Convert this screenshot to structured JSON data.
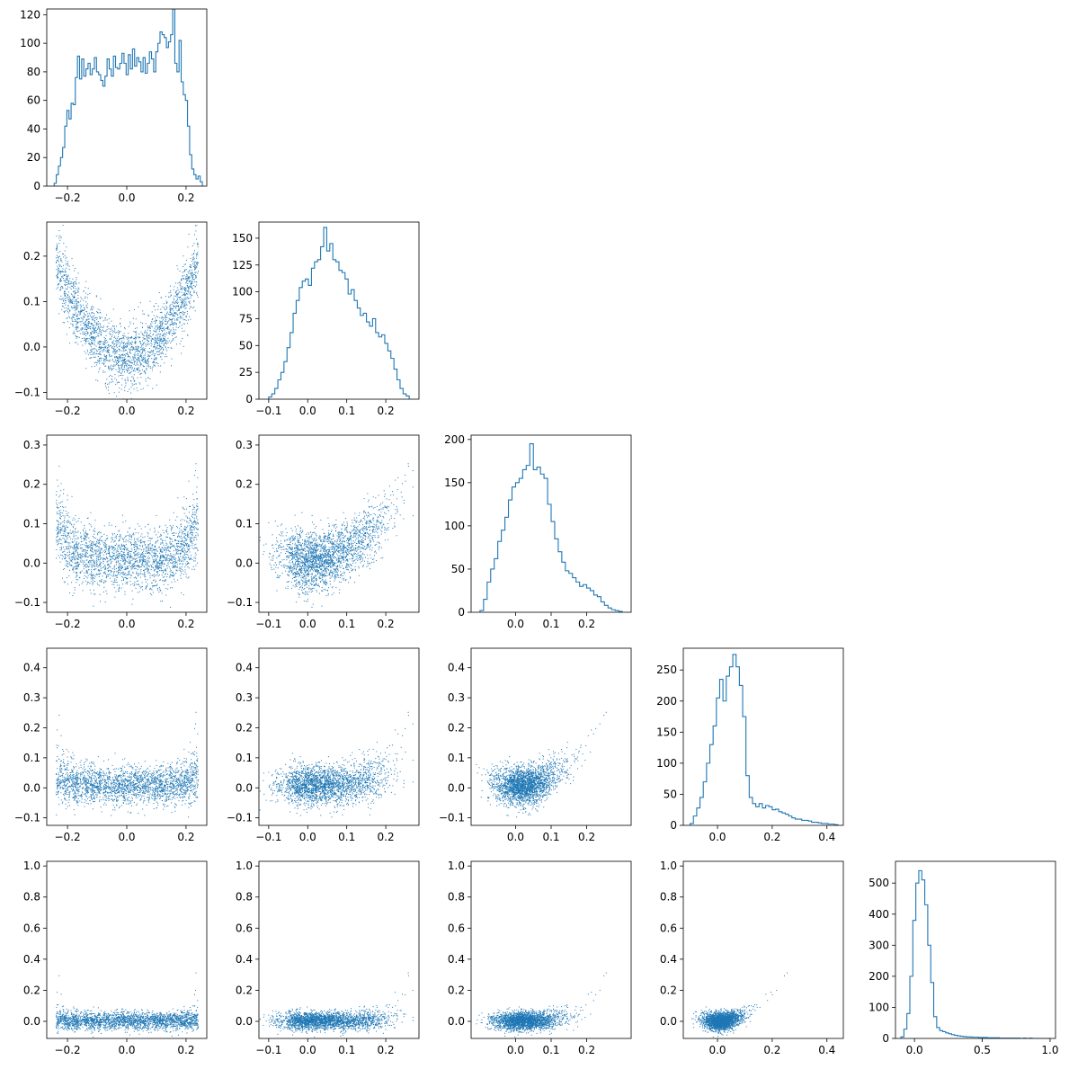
{
  "figure": {
    "type": "corner-plot",
    "colors": {
      "series": "#1f77b4",
      "axes": "#000000",
      "background": "#ffffff"
    }
  },
  "chart_data": [
    {
      "type": "histogram",
      "row": 0,
      "col": 0,
      "xlim": [
        -0.27,
        0.27
      ],
      "ylim": [
        0,
        124
      ],
      "xticks": [
        {
          "v": -0.2,
          "label": "−0.2"
        },
        {
          "v": 0.0,
          "label": "0.0"
        },
        {
          "v": 0.2,
          "label": "0.2"
        }
      ],
      "yticks": [
        {
          "v": 0,
          "label": "0"
        },
        {
          "v": 20,
          "label": "20"
        },
        {
          "v": 40,
          "label": "40"
        },
        {
          "v": 60,
          "label": "60"
        },
        {
          "v": 80,
          "label": "80"
        },
        {
          "v": 100,
          "label": "100"
        },
        {
          "v": 120,
          "label": "120"
        }
      ],
      "bin_range": [
        -0.245,
        0.255
      ],
      "values": [
        2,
        8,
        14,
        20,
        27,
        42,
        53,
        47,
        58,
        57,
        76,
        91,
        75,
        89,
        77,
        82,
        86,
        78,
        82,
        90,
        80,
        78,
        74,
        70,
        77,
        89,
        82,
        77,
        91,
        83,
        82,
        86,
        93,
        86,
        78,
        92,
        82,
        96,
        84,
        90,
        87,
        80,
        90,
        79,
        86,
        94,
        89,
        80,
        94,
        100,
        108,
        106,
        104,
        97,
        101,
        106,
        124,
        86,
        80,
        102,
        73,
        64,
        60,
        42,
        22,
        12,
        8,
        5,
        7,
        3
      ]
    },
    {
      "type": "scatter",
      "row": 1,
      "col": 0,
      "xlim": [
        -0.27,
        0.27
      ],
      "ylim": [
        -0.115,
        0.275
      ],
      "xticks": [
        {
          "v": -0.2,
          "label": "−0.2"
        },
        {
          "v": 0.0,
          "label": "0.0"
        },
        {
          "v": 0.2,
          "label": "0.2"
        }
      ],
      "yticks": [
        {
          "v": -0.1,
          "label": "−0.1"
        },
        {
          "v": 0.0,
          "label": "0.0"
        },
        {
          "v": 0.1,
          "label": "0.1"
        },
        {
          "v": 0.2,
          "label": "0.2"
        }
      ],
      "n_points": 2400,
      "trend": "y ≈ 3.6·x² + N(0, 0.04)"
    },
    {
      "type": "histogram",
      "row": 1,
      "col": 1,
      "xlim": [
        -0.125,
        0.285
      ],
      "ylim": [
        0,
        165
      ],
      "xticks": [
        {
          "v": -0.1,
          "label": "−0.1"
        },
        {
          "v": 0.0,
          "label": "0.0"
        },
        {
          "v": 0.1,
          "label": "0.1"
        },
        {
          "v": 0.2,
          "label": "0.2"
        }
      ],
      "yticks": [
        {
          "v": 0,
          "label": "0"
        },
        {
          "v": 25,
          "label": "25"
        },
        {
          "v": 50,
          "label": "50"
        },
        {
          "v": 75,
          "label": "75"
        },
        {
          "v": 100,
          "label": "100"
        },
        {
          "v": 125,
          "label": "125"
        },
        {
          "v": 150,
          "label": "150"
        }
      ],
      "bin_range": [
        -0.1,
        0.26
      ],
      "values": [
        2,
        5,
        10,
        18,
        25,
        35,
        48,
        62,
        80,
        92,
        104,
        110,
        112,
        106,
        122,
        128,
        130,
        142,
        160,
        138,
        145,
        130,
        128,
        120,
        118,
        112,
        98,
        102,
        92,
        85,
        78,
        80,
        72,
        68,
        75,
        62,
        58,
        60,
        52,
        45,
        38,
        28,
        18,
        10,
        5,
        3
      ]
    },
    {
      "type": "scatter",
      "row": 2,
      "col": 0,
      "xlim": [
        -0.27,
        0.27
      ],
      "ylim": [
        -0.125,
        0.325
      ],
      "xticks": [
        {
          "v": -0.2,
          "label": "−0.2"
        },
        {
          "v": 0.0,
          "label": "0.0"
        },
        {
          "v": 0.2,
          "label": "0.2"
        }
      ],
      "yticks": [
        {
          "v": -0.1,
          "label": "−0.1"
        },
        {
          "v": 0.0,
          "label": "0.0"
        },
        {
          "v": 0.1,
          "label": "0.1"
        },
        {
          "v": 0.2,
          "label": "0.2"
        },
        {
          "v": 0.3,
          "label": "0.3"
        }
      ],
      "n_points": 2400,
      "trend": "U-shaped, y ≈ 4·x² + N(0, 0.045)"
    },
    {
      "type": "scatter",
      "row": 2,
      "col": 1,
      "xlim": [
        -0.125,
        0.285
      ],
      "ylim": [
        -0.125,
        0.325
      ],
      "xticks": [
        {
          "v": -0.1,
          "label": "−0.1"
        },
        {
          "v": 0.0,
          "label": "0.0"
        },
        {
          "v": 0.1,
          "label": "0.1"
        },
        {
          "v": 0.2,
          "label": "0.2"
        }
      ],
      "yticks": [
        {
          "v": -0.1,
          "label": "−0.1"
        },
        {
          "v": 0.0,
          "label": "0.0"
        },
        {
          "v": 0.1,
          "label": "0.1"
        },
        {
          "v": 0.2,
          "label": "0.2"
        },
        {
          "v": 0.3,
          "label": "0.3"
        }
      ],
      "n_points": 2400,
      "trend": "increasing convex"
    },
    {
      "type": "histogram",
      "row": 2,
      "col": 2,
      "xlim": [
        -0.125,
        0.325
      ],
      "ylim": [
        0,
        205
      ],
      "xticks": [
        {
          "v": 0.0,
          "label": "0.0"
        },
        {
          "v": 0.1,
          "label": "0.1"
        },
        {
          "v": 0.2,
          "label": "0.2"
        }
      ],
      "yticks": [
        {
          "v": 0,
          "label": "0"
        },
        {
          "v": 50,
          "label": "50"
        },
        {
          "v": 100,
          "label": "100"
        },
        {
          "v": 150,
          "label": "150"
        },
        {
          "v": 200,
          "label": "200"
        }
      ],
      "bin_range": [
        -0.1,
        0.3
      ],
      "values": [
        2,
        15,
        35,
        50,
        62,
        82,
        95,
        110,
        130,
        145,
        150,
        155,
        165,
        170,
        195,
        165,
        168,
        160,
        155,
        125,
        105,
        85,
        70,
        58,
        48,
        45,
        40,
        35,
        30,
        32,
        28,
        25,
        20,
        18,
        12,
        8,
        5,
        3,
        2,
        1
      ]
    },
    {
      "type": "scatter",
      "row": 3,
      "col": 0,
      "xlim": [
        -0.27,
        0.27
      ],
      "ylim": [
        -0.125,
        0.465
      ],
      "xticks": [
        {
          "v": -0.2,
          "label": "−0.2"
        },
        {
          "v": 0.0,
          "label": "0.0"
        },
        {
          "v": 0.2,
          "label": "0.2"
        }
      ],
      "yticks": [
        {
          "v": -0.1,
          "label": "−0.1"
        },
        {
          "v": 0.0,
          "label": "0.0"
        },
        {
          "v": 0.1,
          "label": "0.1"
        },
        {
          "v": 0.2,
          "label": "0.2"
        },
        {
          "v": 0.3,
          "label": "0.3"
        },
        {
          "v": 0.4,
          "label": "0.4"
        }
      ],
      "n_points": 2400,
      "trend": "U-shaped, flat floor"
    },
    {
      "type": "scatter",
      "row": 3,
      "col": 1,
      "xlim": [
        -0.125,
        0.285
      ],
      "ylim": [
        -0.125,
        0.465
      ],
      "xticks": [
        {
          "v": -0.1,
          "label": "−0.1"
        },
        {
          "v": 0.0,
          "label": "0.0"
        },
        {
          "v": 0.1,
          "label": "0.1"
        },
        {
          "v": 0.2,
          "label": "0.2"
        }
      ],
      "yticks": [
        {
          "v": -0.1,
          "label": "−0.1"
        },
        {
          "v": 0.0,
          "label": "0.0"
        },
        {
          "v": 0.1,
          "label": "0.1"
        },
        {
          "v": 0.2,
          "label": "0.2"
        },
        {
          "v": 0.3,
          "label": "0.3"
        },
        {
          "v": 0.4,
          "label": "0.4"
        }
      ],
      "n_points": 2400,
      "trend": "flat then rising"
    },
    {
      "type": "scatter",
      "row": 3,
      "col": 2,
      "xlim": [
        -0.125,
        0.325
      ],
      "ylim": [
        -0.125,
        0.465
      ],
      "xticks": [
        {
          "v": 0.0,
          "label": "0.0"
        },
        {
          "v": 0.1,
          "label": "0.1"
        },
        {
          "v": 0.2,
          "label": "0.2"
        }
      ],
      "yticks": [
        {
          "v": -0.1,
          "label": "−0.1"
        },
        {
          "v": 0.0,
          "label": "0.0"
        },
        {
          "v": 0.1,
          "label": "0.1"
        },
        {
          "v": 0.2,
          "label": "0.2"
        },
        {
          "v": 0.3,
          "label": "0.3"
        },
        {
          "v": 0.4,
          "label": "0.4"
        }
      ],
      "n_points": 2400,
      "trend": "flat blob then rising"
    },
    {
      "type": "histogram",
      "row": 3,
      "col": 3,
      "xlim": [
        -0.125,
        0.46
      ],
      "ylim": [
        0,
        285
      ],
      "xticks": [
        {
          "v": 0.0,
          "label": "0.0"
        },
        {
          "v": 0.2,
          "label": "0.2"
        },
        {
          "v": 0.4,
          "label": "0.4"
        }
      ],
      "yticks": [
        {
          "v": 0,
          "label": "0"
        },
        {
          "v": 50,
          "label": "50"
        },
        {
          "v": 100,
          "label": "100"
        },
        {
          "v": 150,
          "label": "150"
        },
        {
          "v": 200,
          "label": "200"
        },
        {
          "v": 250,
          "label": "250"
        }
      ],
      "bin_range": [
        -0.1,
        0.44
      ],
      "values": [
        3,
        15,
        28,
        45,
        70,
        100,
        130,
        160,
        205,
        235,
        200,
        240,
        255,
        275,
        255,
        225,
        175,
        80,
        45,
        35,
        30,
        35,
        28,
        32,
        30,
        25,
        26,
        22,
        20,
        18,
        15,
        12,
        10,
        10,
        8,
        8,
        7,
        5,
        5,
        4,
        3,
        3,
        2,
        2,
        1
      ]
    },
    {
      "type": "scatter",
      "row": 4,
      "col": 0,
      "xlim": [
        -0.27,
        0.27
      ],
      "ylim": [
        -0.11,
        1.03
      ],
      "xticks": [
        {
          "v": -0.2,
          "label": "−0.2"
        },
        {
          "v": 0.0,
          "label": "0.0"
        },
        {
          "v": 0.2,
          "label": "0.2"
        }
      ],
      "yticks": [
        {
          "v": 0.0,
          "label": "0.0"
        },
        {
          "v": 0.2,
          "label": "0.2"
        },
        {
          "v": 0.4,
          "label": "0.4"
        },
        {
          "v": 0.6,
          "label": "0.6"
        },
        {
          "v": 0.8,
          "label": "0.8"
        },
        {
          "v": 1.0,
          "label": "1.0"
        }
      ],
      "n_points": 2400,
      "trend": "flat band, spikes at edges"
    },
    {
      "type": "scatter",
      "row": 4,
      "col": 1,
      "xlim": [
        -0.125,
        0.285
      ],
      "ylim": [
        -0.11,
        1.03
      ],
      "xticks": [
        {
          "v": -0.1,
          "label": "−0.1"
        },
        {
          "v": 0.0,
          "label": "0.0"
        },
        {
          "v": 0.1,
          "label": "0.1"
        },
        {
          "v": 0.2,
          "label": "0.2"
        }
      ],
      "yticks": [
        {
          "v": 0.0,
          "label": "0.0"
        },
        {
          "v": 0.2,
          "label": "0.2"
        },
        {
          "v": 0.4,
          "label": "0.4"
        },
        {
          "v": 0.6,
          "label": "0.6"
        },
        {
          "v": 0.8,
          "label": "0.8"
        },
        {
          "v": 1.0,
          "label": "1.0"
        }
      ],
      "n_points": 2400,
      "trend": "flat then rising"
    },
    {
      "type": "scatter",
      "row": 4,
      "col": 2,
      "xlim": [
        -0.125,
        0.325
      ],
      "ylim": [
        -0.11,
        1.03
      ],
      "xticks": [
        {
          "v": 0.0,
          "label": "0.0"
        },
        {
          "v": 0.1,
          "label": "0.1"
        },
        {
          "v": 0.2,
          "label": "0.2"
        }
      ],
      "yticks": [
        {
          "v": 0.0,
          "label": "0.0"
        },
        {
          "v": 0.2,
          "label": "0.2"
        },
        {
          "v": 0.4,
          "label": "0.4"
        },
        {
          "v": 0.6,
          "label": "0.6"
        },
        {
          "v": 0.8,
          "label": "0.8"
        },
        {
          "v": 1.0,
          "label": "1.0"
        }
      ],
      "n_points": 2400,
      "trend": "flat then rising"
    },
    {
      "type": "scatter",
      "row": 4,
      "col": 3,
      "xlim": [
        -0.125,
        0.46
      ],
      "ylim": [
        -0.11,
        1.03
      ],
      "xticks": [
        {
          "v": 0.0,
          "label": "0.0"
        },
        {
          "v": 0.2,
          "label": "0.2"
        },
        {
          "v": 0.4,
          "label": "0.4"
        }
      ],
      "yticks": [
        {
          "v": 0.0,
          "label": "0.0"
        },
        {
          "v": 0.2,
          "label": "0.2"
        },
        {
          "v": 0.4,
          "label": "0.4"
        },
        {
          "v": 0.6,
          "label": "0.6"
        },
        {
          "v": 0.8,
          "label": "0.8"
        },
        {
          "v": 1.0,
          "label": "1.0"
        }
      ],
      "n_points": 2400,
      "trend": "y ≈ 4.5·x² + noise"
    },
    {
      "type": "histogram",
      "row": 4,
      "col": 4,
      "xlim": [
        -0.14,
        1.04
      ],
      "ylim": [
        0,
        570
      ],
      "xticks": [
        {
          "v": 0.0,
          "label": "0.0"
        },
        {
          "v": 0.5,
          "label": "0.5"
        },
        {
          "v": 1.0,
          "label": "1.0"
        }
      ],
      "yticks": [
        {
          "v": 0,
          "label": "0"
        },
        {
          "v": 100,
          "label": "100"
        },
        {
          "v": 200,
          "label": "200"
        },
        {
          "v": 300,
          "label": "300"
        },
        {
          "v": 400,
          "label": "400"
        },
        {
          "v": 500,
          "label": "500"
        }
      ],
      "bin_range": [
        -0.1,
        1.0
      ],
      "values": [
        5,
        30,
        80,
        200,
        380,
        500,
        540,
        510,
        430,
        300,
        180,
        70,
        35,
        25,
        22,
        18,
        15,
        12,
        10,
        8,
        7,
        6,
        5,
        5,
        4,
        4,
        3,
        3,
        3,
        2,
        2,
        2,
        2,
        1,
        1,
        1,
        1,
        1,
        1,
        1,
        0,
        1,
        0,
        1,
        0,
        0,
        0,
        0,
        0,
        0
      ]
    }
  ]
}
